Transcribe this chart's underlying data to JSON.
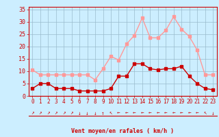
{
  "hours": [
    0,
    1,
    2,
    3,
    4,
    5,
    6,
    7,
    8,
    9,
    10,
    11,
    12,
    13,
    14,
    15,
    16,
    17,
    18,
    19,
    20,
    21,
    22,
    23
  ],
  "wind_avg": [
    3,
    5,
    5,
    3,
    3,
    3,
    2,
    2,
    2,
    2,
    3,
    8,
    8,
    13,
    13,
    11,
    10.5,
    11,
    11,
    12,
    8,
    5,
    3,
    2.5
  ],
  "wind_gust": [
    10.5,
    8.5,
    8.5,
    8.5,
    8.5,
    8.5,
    8.5,
    8.5,
    6.5,
    11,
    16,
    14.5,
    21,
    24.5,
    31.5,
    23.5,
    23.5,
    26.5,
    32,
    27,
    24,
    18.5,
    8.5,
    8.5
  ],
  "wind_dir_arrows": [
    "↗",
    "↗",
    "↗",
    "↗",
    "↗",
    "↗",
    "↓",
    "↓",
    "↓",
    "↑",
    "↖",
    "←",
    "←",
    "←",
    "←",
    "←",
    "←",
    "←",
    "←",
    "←",
    "←",
    "←",
    "↖",
    "↓"
  ],
  "color_avg": "#cc0000",
  "color_gust": "#ff9999",
  "bg_color": "#cceeff",
  "grid_color": "#99bbcc",
  "xlabel": "Vent moyen/en rafales ( km/h )",
  "yticks": [
    0,
    5,
    10,
    15,
    20,
    25,
    30,
    35
  ],
  "ylim": [
    0,
    36
  ],
  "xlim": [
    -0.5,
    23.5
  ],
  "axis_color": "#cc0000",
  "tick_color": "#cc0000",
  "marker_size": 2.5,
  "line_width": 1.0,
  "xlabel_fontsize": 6.0,
  "tick_fontsize": 5.5,
  "ytick_fontsize": 6.0
}
